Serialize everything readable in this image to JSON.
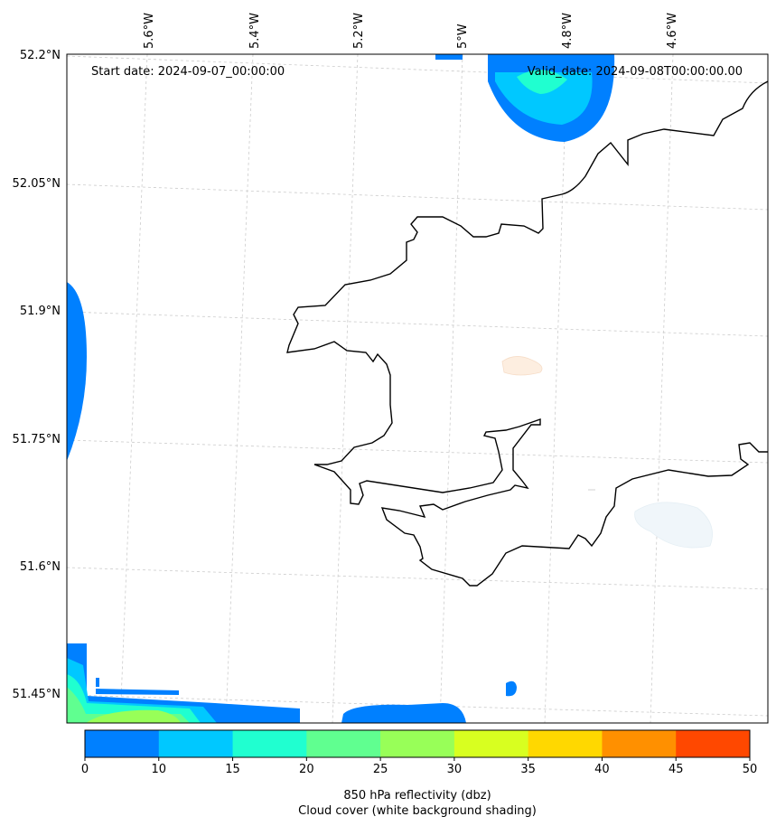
{
  "map": {
    "start_date": "Start date: 2024-09-07_00:00:00",
    "valid_date": "Valid_date: 2024-09-08T00:00:00.00",
    "lon_ticks": [
      "5.6°W",
      "5.4°W",
      "5.2°W",
      "5°W",
      "4.8°W",
      "4.6°W"
    ],
    "lat_ticks": [
      "52.2°N",
      "52.05°N",
      "51.9°N",
      "51.75°N",
      "51.6°N",
      "51.45°N"
    ],
    "grid": true
  },
  "colorbar": {
    "ticks": [
      "0",
      "10",
      "15",
      "20",
      "25",
      "30",
      "35",
      "40",
      "45",
      "50"
    ],
    "colors": [
      "#0080ff",
      "#00c8ff",
      "#20ffd0",
      "#60ff90",
      "#98ff58",
      "#d8ff20",
      "#ffd800",
      "#ff9000",
      "#ff4800"
    ],
    "label_line1": "850 hPa reflectivity (dbz)",
    "label_line2": "Cloud cover (white background shading)"
  }
}
